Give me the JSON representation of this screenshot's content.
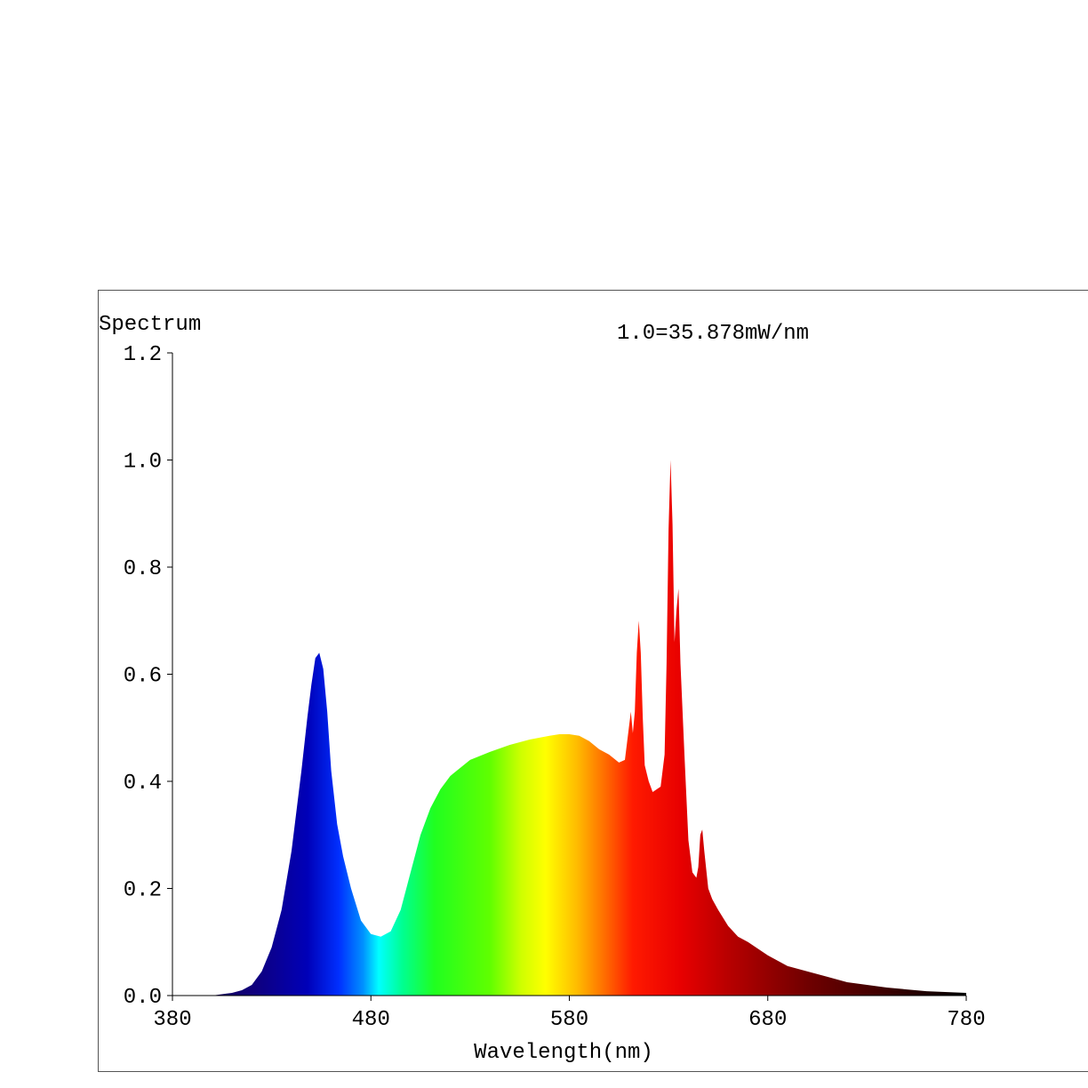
{
  "chart_data": {
    "type": "area",
    "title": "",
    "ylabel": "Spectrum",
    "xlabel": "Wavelength(nm)",
    "annotation": "1.0=35.878mW/nm",
    "xlim": [
      380,
      780
    ],
    "ylim": [
      0,
      1.2
    ],
    "xticks": [
      "380",
      "480",
      "580",
      "680",
      "780"
    ],
    "yticks": [
      "0.0",
      "0.2",
      "0.4",
      "0.6",
      "0.8",
      "1.0",
      "1.2"
    ],
    "fill": "wavelength-colored spectrum",
    "series": [
      {
        "x": [
          380,
          400,
          410,
          415,
          420,
          425,
          430,
          435,
          440,
          445,
          448,
          450,
          452,
          454,
          456,
          458,
          460,
          463,
          466,
          470,
          475,
          480,
          485,
          490,
          495,
          500,
          505,
          510,
          515,
          520,
          530,
          540,
          550,
          560,
          570,
          575,
          580,
          585,
          590,
          595,
          600,
          605,
          608,
          610,
          611,
          612,
          613,
          614,
          615,
          616,
          617,
          618,
          620,
          622,
          624,
          626,
          628,
          629,
          630,
          631,
          632,
          633,
          634,
          635,
          636,
          638,
          640,
          642,
          644,
          645,
          646,
          647,
          648,
          650,
          652,
          655,
          660,
          665,
          670,
          680,
          690,
          700,
          710,
          720,
          740,
          760,
          780
        ],
        "y": [
          0.0,
          0.0,
          0.005,
          0.01,
          0.02,
          0.045,
          0.09,
          0.16,
          0.27,
          0.42,
          0.52,
          0.58,
          0.63,
          0.64,
          0.61,
          0.53,
          0.42,
          0.32,
          0.26,
          0.2,
          0.14,
          0.115,
          0.11,
          0.12,
          0.16,
          0.23,
          0.3,
          0.35,
          0.385,
          0.41,
          0.44,
          0.455,
          0.468,
          0.478,
          0.485,
          0.488,
          0.488,
          0.485,
          0.475,
          0.46,
          0.45,
          0.435,
          0.44,
          0.5,
          0.53,
          0.49,
          0.53,
          0.64,
          0.7,
          0.64,
          0.52,
          0.43,
          0.4,
          0.38,
          0.385,
          0.39,
          0.45,
          0.62,
          0.87,
          1.0,
          0.88,
          0.66,
          0.72,
          0.76,
          0.62,
          0.45,
          0.29,
          0.23,
          0.22,
          0.24,
          0.3,
          0.31,
          0.27,
          0.2,
          0.18,
          0.16,
          0.13,
          0.11,
          0.1,
          0.075,
          0.055,
          0.045,
          0.035,
          0.025,
          0.015,
          0.008,
          0.005
        ]
      }
    ]
  }
}
